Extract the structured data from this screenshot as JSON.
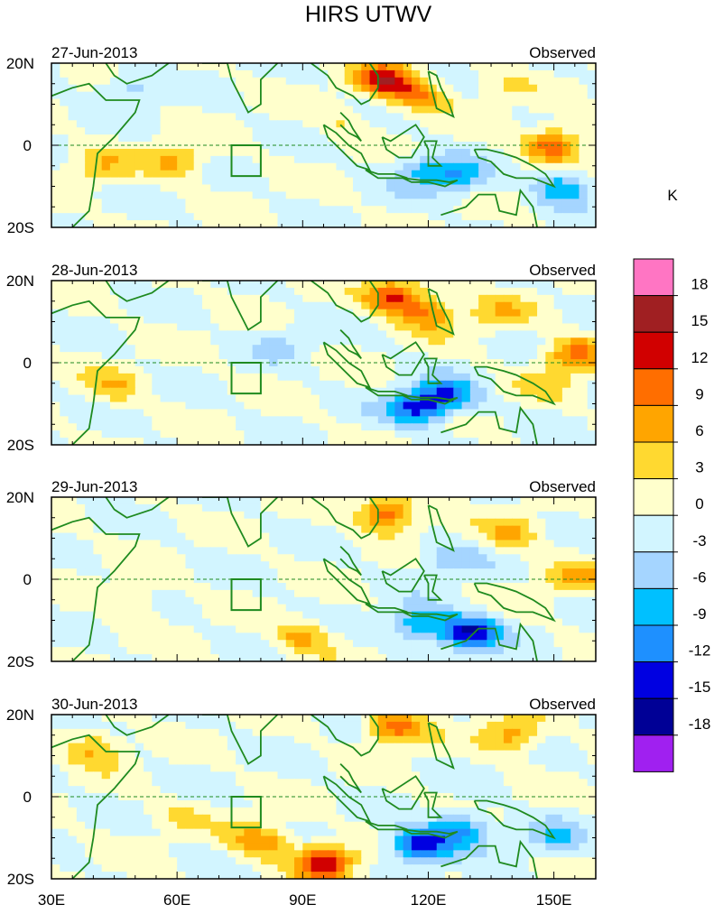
{
  "chart_data": {
    "type": "heatmap",
    "title": "HIRS UTWV",
    "colorbar": {
      "unit": "K",
      "levels": [
        18,
        15,
        12,
        9,
        6,
        3,
        0,
        -3,
        -6,
        -9,
        -12,
        -15,
        -18
      ],
      "colors": [
        "#ff75c3",
        "#a01f22",
        "#d10000",
        "#ff6e00",
        "#ffa500",
        "#ffd930",
        "#ffffcc",
        "#d2f5ff",
        "#a5d5ff",
        "#00c0ff",
        "#1e90ff",
        "#0000e1",
        "#000096",
        "#a020f0"
      ]
    },
    "x_axis": {
      "ticks": [
        "30E",
        "60E",
        "90E",
        "120E",
        "150E"
      ],
      "range": [
        30,
        160
      ]
    },
    "y_axis": {
      "ticks": [
        "20N",
        "0",
        "20S"
      ],
      "range": [
        -20,
        20
      ]
    },
    "panels": [
      {
        "date": "27-Jun-2013",
        "label": "Observed",
        "features": [
          {
            "lon": 42,
            "lat": -5,
            "value": 5
          },
          {
            "lon": 60,
            "lat": -4,
            "value": 7
          },
          {
            "lon": 110,
            "lat": 16,
            "value": 13
          },
          {
            "lon": 118,
            "lat": 12,
            "value": 8
          },
          {
            "lon": 127,
            "lat": -8,
            "value": -8
          },
          {
            "lon": 118,
            "lat": -6,
            "value": -6
          },
          {
            "lon": 100,
            "lat": 6,
            "value": 3
          },
          {
            "lon": 150,
            "lat": 0,
            "value": 12
          },
          {
            "lon": 152,
            "lat": -10,
            "value": -9
          },
          {
            "lon": 137,
            "lat": 15,
            "value": 3
          },
          {
            "lon": 48,
            "lat": 14,
            "value": -5
          }
        ]
      },
      {
        "date": "28-Jun-2013",
        "label": "Observed",
        "features": [
          {
            "lon": 45,
            "lat": -6,
            "value": 5
          },
          {
            "lon": 112,
            "lat": 16,
            "value": 13
          },
          {
            "lon": 120,
            "lat": 12,
            "value": 8
          },
          {
            "lon": 117,
            "lat": -11,
            "value": -13
          },
          {
            "lon": 125,
            "lat": -8,
            "value": -10
          },
          {
            "lon": 155,
            "lat": 2,
            "value": 10
          },
          {
            "lon": 137,
            "lat": 12,
            "value": 5
          },
          {
            "lon": 148,
            "lat": -5,
            "value": 3
          },
          {
            "lon": 85,
            "lat": 5,
            "value": -3
          }
        ]
      },
      {
        "date": "29-Jun-2013",
        "label": "Observed",
        "features": [
          {
            "lon": 50,
            "lat": -5,
            "value": 4
          },
          {
            "lon": 110,
            "lat": 16,
            "value": 12
          },
          {
            "lon": 130,
            "lat": -13,
            "value": -15
          },
          {
            "lon": 118,
            "lat": -11,
            "value": -10
          },
          {
            "lon": 90,
            "lat": -14,
            "value": 7
          },
          {
            "lon": 140,
            "lat": 11,
            "value": 6
          },
          {
            "lon": 125,
            "lat": 5,
            "value": -5
          },
          {
            "lon": 155,
            "lat": 0,
            "value": 6
          }
        ]
      },
      {
        "date": "30-Jun-2013",
        "label": "Observed",
        "features": [
          {
            "lon": 95,
            "lat": -16,
            "value": 14
          },
          {
            "lon": 80,
            "lat": -11,
            "value": 9
          },
          {
            "lon": 118,
            "lat": -12,
            "value": -15
          },
          {
            "lon": 128,
            "lat": -8,
            "value": -10
          },
          {
            "lon": 112,
            "lat": 17,
            "value": 11
          },
          {
            "lon": 140,
            "lat": 15,
            "value": 8
          },
          {
            "lon": 40,
            "lat": 12,
            "value": 7
          },
          {
            "lon": 150,
            "lat": -10,
            "value": -5
          },
          {
            "lon": 60,
            "lat": -5,
            "value": 3
          }
        ]
      }
    ]
  }
}
